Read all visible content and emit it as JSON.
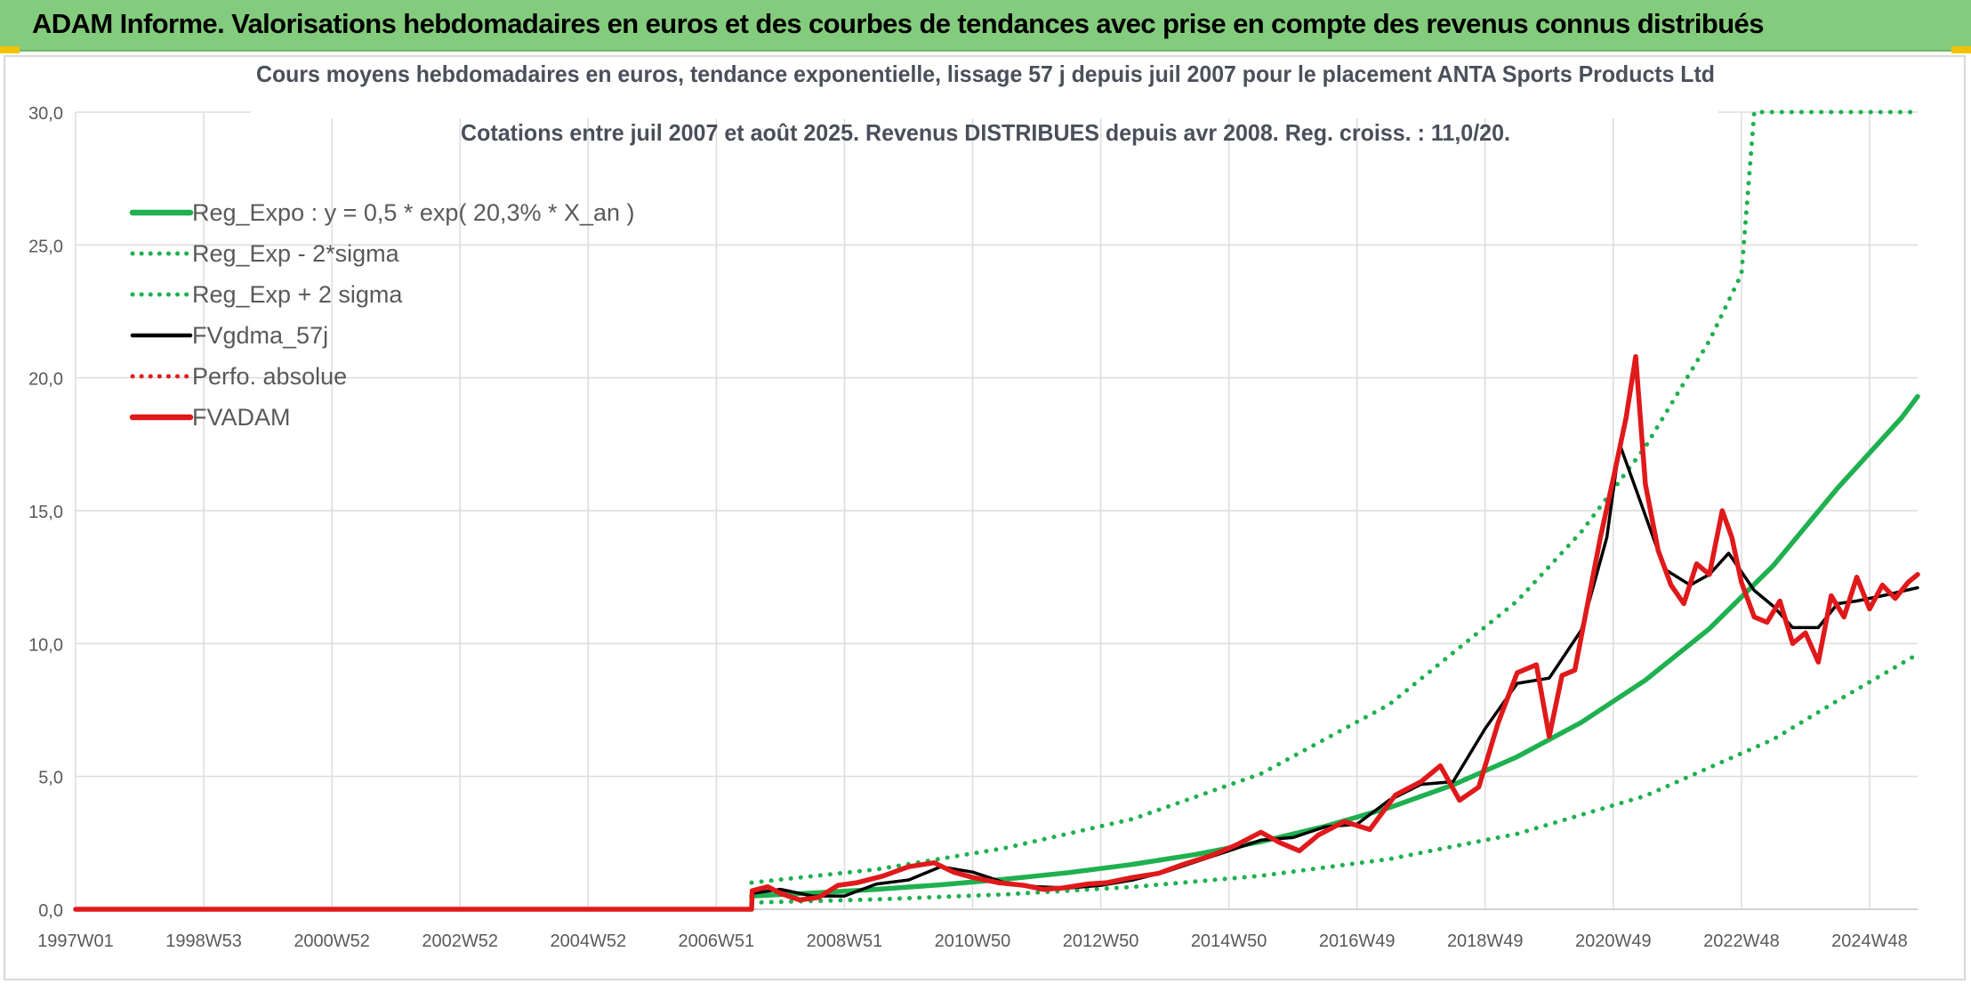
{
  "banner": {
    "title": "ADAM Informe. Valorisations hebdomadaires en euros et des courbes de tendances avec prise en compte des revenus connus distribués",
    "color": "#84cc7d"
  },
  "chart_data": {
    "type": "line",
    "title": "Cours moyens hebdomadaires en euros, tendance exponentielle, lissage 57 j depuis juil 2007 pour le placement ANTA Sports Products Ltd",
    "subtitle": "Cotations entre juil 2007 et août 2025. Revenus DISTRIBUES depuis avr 2008. Reg. croiss. : 11,0/20.",
    "xlabel": "",
    "ylabel": "",
    "x_range": [
      1997.0,
      2025.75
    ],
    "ylim": [
      0,
      30
    ],
    "y_ticks": [
      "0,0",
      "5,0",
      "10,0",
      "15,0",
      "20,0",
      "25,0",
      "30,0"
    ],
    "x_tick_labels": [
      "1997W01",
      "1998W53",
      "2000W52",
      "2002W52",
      "2004W52",
      "2006W51",
      "2008W51",
      "2010W50",
      "2012W50",
      "2014W50",
      "2016W49",
      "2018W49",
      "2020W49",
      "2022W48",
      "2024W48"
    ],
    "x_tick_values": [
      1997.0,
      1999.0,
      2001.0,
      2003.0,
      2005.0,
      2007.0,
      2009.0,
      2011.0,
      2013.0,
      2015.0,
      2017.0,
      2019.0,
      2021.0,
      2023.0,
      2025.0
    ],
    "grid": true,
    "legend_position": "top-left",
    "series": [
      {
        "name": "Reg_Expo : y = 0,5 * exp( 20,3% *  X_an )",
        "color": "#1fb04f",
        "style": "solid",
        "x": [
          2007.55,
          2008.5,
          2009.5,
          2010.5,
          2011.5,
          2012.5,
          2013.5,
          2014.5,
          2015.5,
          2016.5,
          2017.5,
          2018.5,
          2019.5,
          2020.5,
          2021.5,
          2022.5,
          2023.5,
          2024.5,
          2025.5,
          2025.75
        ],
        "y": [
          0.5,
          0.61,
          0.75,
          0.92,
          1.13,
          1.38,
          1.69,
          2.07,
          2.54,
          3.12,
          3.82,
          4.68,
          5.74,
          7.03,
          8.62,
          10.56,
          12.94,
          15.85,
          18.5,
          19.3
        ]
      },
      {
        "name": "Reg_Exp - 2*sigma",
        "color": "#1fb04f",
        "style": "dotted",
        "x": [
          2007.55,
          2009.5,
          2011.5,
          2013.5,
          2015.5,
          2017.5,
          2019.5,
          2021.5,
          2023.5,
          2024.5,
          2025.75
        ],
        "y": [
          0.25,
          0.37,
          0.56,
          0.84,
          1.26,
          1.89,
          2.84,
          4.27,
          6.4,
          7.85,
          9.6
        ]
      },
      {
        "name": "Reg_Exp + 2 sigma",
        "color": "#1fb04f",
        "style": "dotted",
        "x": [
          2007.55,
          2009.5,
          2011.5,
          2013.5,
          2015.5,
          2017.5,
          2019.5,
          2020.5,
          2021.5,
          2022.5,
          2023.0,
          2023.2,
          2023.5,
          2024.5,
          2025.75
        ],
        "y": [
          1.0,
          1.5,
          2.3,
          3.4,
          5.1,
          7.7,
          11.6,
          14.2,
          17.4,
          21.4,
          23.9,
          30.0,
          30.0,
          30.0,
          30.0
        ]
      },
      {
        "name": "FVgdma_57j",
        "color": "#000000",
        "style": "solid",
        "x": [
          1997.0,
          2007.55,
          2007.56,
          2008.0,
          2008.5,
          2009.0,
          2009.5,
          2010.0,
          2010.5,
          2011.0,
          2011.5,
          2012.0,
          2012.5,
          2013.0,
          2013.5,
          2014.0,
          2014.5,
          2015.0,
          2015.5,
          2016.0,
          2016.5,
          2017.0,
          2017.5,
          2018.0,
          2018.5,
          2019.0,
          2019.5,
          2020.0,
          2020.5,
          2020.9,
          2021.1,
          2021.4,
          2021.8,
          2022.2,
          2022.5,
          2022.8,
          2023.2,
          2023.5,
          2023.8,
          2024.2,
          2024.5,
          2024.8,
          2025.2,
          2025.75
        ],
        "y": [
          0.0,
          0.0,
          0.6,
          0.75,
          0.5,
          0.5,
          0.95,
          1.1,
          1.6,
          1.4,
          1.0,
          0.85,
          0.8,
          0.9,
          1.1,
          1.4,
          1.8,
          2.2,
          2.6,
          2.7,
          3.1,
          3.2,
          4.1,
          4.7,
          4.8,
          6.8,
          8.5,
          8.7,
          10.5,
          14.0,
          17.5,
          15.5,
          12.8,
          12.2,
          12.6,
          13.4,
          12.0,
          11.4,
          10.6,
          10.6,
          11.5,
          11.6,
          11.8,
          12.1
        ]
      },
      {
        "name": "Perfo. absolue",
        "color": "#e0191b",
        "style": "dotted",
        "x": [],
        "y": []
      },
      {
        "name": "FVADAM",
        "color": "#e0191b",
        "style": "solid",
        "x": [
          1997.0,
          2007.55,
          2007.56,
          2007.8,
          2008.0,
          2008.3,
          2008.6,
          2008.9,
          2009.2,
          2009.6,
          2010.0,
          2010.4,
          2010.7,
          2011.0,
          2011.4,
          2011.8,
          2012.1,
          2012.4,
          2012.8,
          2013.1,
          2013.5,
          2013.9,
          2014.3,
          2014.7,
          2015.1,
          2015.5,
          2015.8,
          2016.1,
          2016.4,
          2016.8,
          2017.2,
          2017.6,
          2018.0,
          2018.3,
          2018.6,
          2018.9,
          2019.2,
          2019.5,
          2019.8,
          2020.0,
          2020.2,
          2020.4,
          2020.6,
          2020.8,
          2021.0,
          2021.2,
          2021.35,
          2021.5,
          2021.7,
          2021.9,
          2022.1,
          2022.3,
          2022.5,
          2022.7,
          2022.85,
          2023.0,
          2023.2,
          2023.4,
          2023.6,
          2023.8,
          2024.0,
          2024.2,
          2024.4,
          2024.6,
          2024.8,
          2025.0,
          2025.2,
          2025.4,
          2025.6,
          2025.75
        ],
        "y": [
          0.0,
          0.0,
          0.7,
          0.85,
          0.6,
          0.35,
          0.45,
          0.9,
          1.0,
          1.25,
          1.6,
          1.75,
          1.4,
          1.2,
          1.0,
          0.9,
          0.75,
          0.8,
          0.95,
          1.0,
          1.2,
          1.35,
          1.7,
          2.0,
          2.4,
          2.9,
          2.5,
          2.2,
          2.8,
          3.3,
          3.0,
          4.3,
          4.8,
          5.4,
          4.1,
          4.6,
          7.0,
          8.9,
          9.2,
          6.5,
          8.8,
          9.0,
          11.5,
          14.0,
          16.2,
          18.5,
          20.8,
          16.0,
          13.5,
          12.2,
          11.5,
          13.0,
          12.6,
          15.0,
          14.0,
          12.3,
          11.0,
          10.8,
          11.6,
          10.0,
          10.4,
          9.3,
          11.8,
          11.0,
          12.5,
          11.3,
          12.2,
          11.7,
          12.3,
          12.6
        ]
      }
    ]
  }
}
